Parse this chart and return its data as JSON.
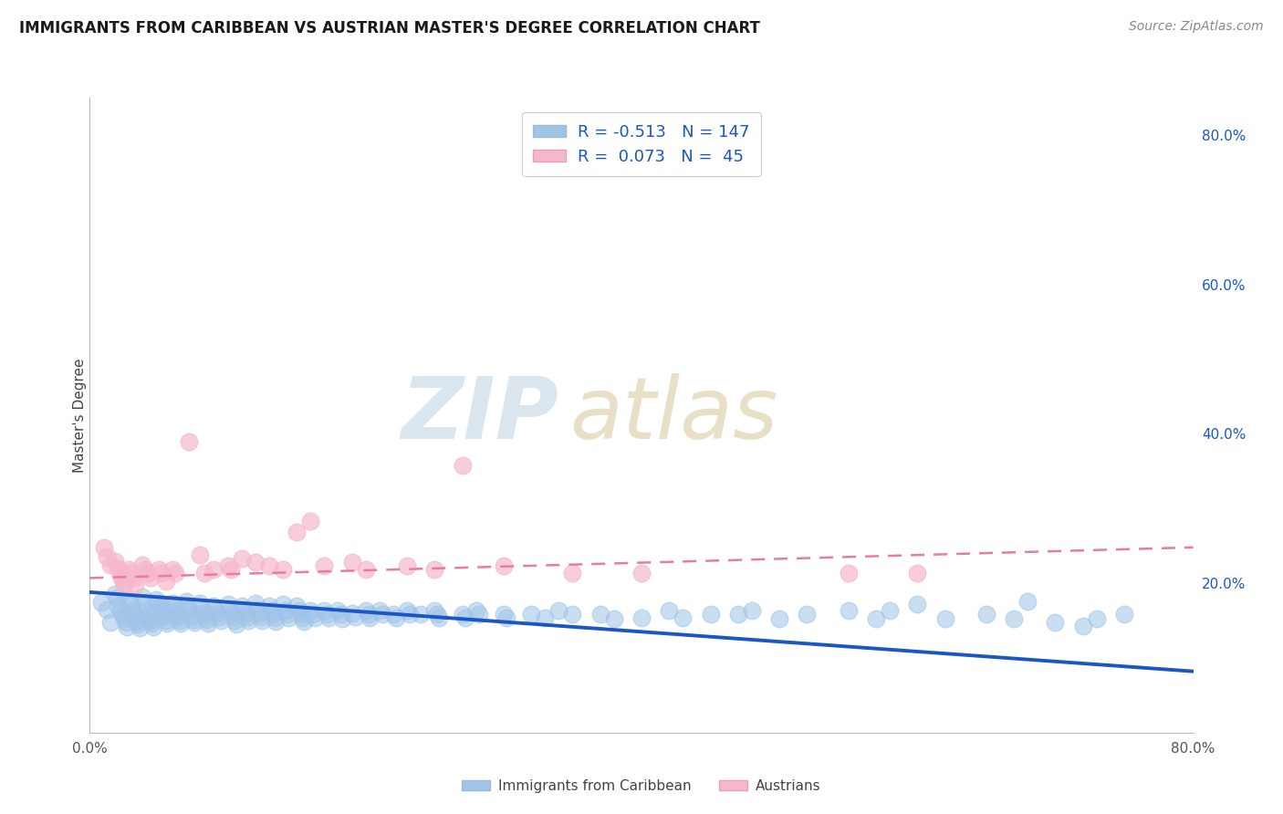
{
  "title": "IMMIGRANTS FROM CARIBBEAN VS AUSTRIAN MASTER'S DEGREE CORRELATION CHART",
  "source": "Source: ZipAtlas.com",
  "ylabel": "Master's Degree",
  "legend_label_blue": "Immigrants from Caribbean",
  "legend_label_pink": "Austrians",
  "legend_r_blue": "-0.513",
  "legend_n_blue": "147",
  "legend_r_pink": "0.073",
  "legend_n_pink": "45",
  "title_fontsize": 12,
  "source_fontsize": 10,
  "background_color": "#ffffff",
  "plot_bg_color": "#ffffff",
  "grid_color": "#cccccc",
  "blue_scatter_color": "#a0c4e8",
  "pink_scatter_color": "#f5b8cb",
  "blue_line_color": "#1a56c4",
  "pink_line_color": "#e87ca0",
  "watermark_zip_color": "#c8d8e8",
  "watermark_atlas_color": "#d4c8a0",
  "blue_scatter": [
    [
      0.008,
      0.175
    ],
    [
      0.012,
      0.165
    ],
    [
      0.015,
      0.148
    ],
    [
      0.018,
      0.185
    ],
    [
      0.02,
      0.18
    ],
    [
      0.02,
      0.17
    ],
    [
      0.022,
      0.162
    ],
    [
      0.024,
      0.157
    ],
    [
      0.025,
      0.152
    ],
    [
      0.026,
      0.147
    ],
    [
      0.027,
      0.142
    ],
    [
      0.028,
      0.178
    ],
    [
      0.03,
      0.172
    ],
    [
      0.031,
      0.163
    ],
    [
      0.032,
      0.158
    ],
    [
      0.033,
      0.153
    ],
    [
      0.034,
      0.149
    ],
    [
      0.035,
      0.145
    ],
    [
      0.036,
      0.14
    ],
    [
      0.038,
      0.182
    ],
    [
      0.04,
      0.173
    ],
    [
      0.041,
      0.163
    ],
    [
      0.042,
      0.158
    ],
    [
      0.043,
      0.154
    ],
    [
      0.044,
      0.15
    ],
    [
      0.045,
      0.146
    ],
    [
      0.046,
      0.141
    ],
    [
      0.048,
      0.178
    ],
    [
      0.05,
      0.173
    ],
    [
      0.051,
      0.169
    ],
    [
      0.052,
      0.163
    ],
    [
      0.053,
      0.159
    ],
    [
      0.054,
      0.155
    ],
    [
      0.055,
      0.15
    ],
    [
      0.056,
      0.146
    ],
    [
      0.06,
      0.173
    ],
    [
      0.061,
      0.169
    ],
    [
      0.062,
      0.164
    ],
    [
      0.063,
      0.159
    ],
    [
      0.064,
      0.155
    ],
    [
      0.065,
      0.15
    ],
    [
      0.066,
      0.146
    ],
    [
      0.07,
      0.176
    ],
    [
      0.071,
      0.17
    ],
    [
      0.072,
      0.165
    ],
    [
      0.074,
      0.156
    ],
    [
      0.075,
      0.151
    ],
    [
      0.076,
      0.147
    ],
    [
      0.08,
      0.173
    ],
    [
      0.082,
      0.165
    ],
    [
      0.083,
      0.16
    ],
    [
      0.084,
      0.155
    ],
    [
      0.085,
      0.151
    ],
    [
      0.086,
      0.146
    ],
    [
      0.09,
      0.17
    ],
    [
      0.091,
      0.164
    ],
    [
      0.093,
      0.16
    ],
    [
      0.094,
      0.155
    ],
    [
      0.095,
      0.15
    ],
    [
      0.1,
      0.172
    ],
    [
      0.102,
      0.165
    ],
    [
      0.103,
      0.16
    ],
    [
      0.104,
      0.155
    ],
    [
      0.105,
      0.15
    ],
    [
      0.106,
      0.145
    ],
    [
      0.11,
      0.169
    ],
    [
      0.112,
      0.164
    ],
    [
      0.113,
      0.159
    ],
    [
      0.114,
      0.155
    ],
    [
      0.115,
      0.15
    ],
    [
      0.12,
      0.173
    ],
    [
      0.122,
      0.165
    ],
    [
      0.123,
      0.16
    ],
    [
      0.124,
      0.155
    ],
    [
      0.125,
      0.15
    ],
    [
      0.13,
      0.169
    ],
    [
      0.132,
      0.164
    ],
    [
      0.133,
      0.159
    ],
    [
      0.134,
      0.154
    ],
    [
      0.135,
      0.149
    ],
    [
      0.14,
      0.172
    ],
    [
      0.142,
      0.164
    ],
    [
      0.143,
      0.159
    ],
    [
      0.144,
      0.154
    ],
    [
      0.15,
      0.169
    ],
    [
      0.152,
      0.164
    ],
    [
      0.153,
      0.159
    ],
    [
      0.154,
      0.154
    ],
    [
      0.155,
      0.149
    ],
    [
      0.16,
      0.164
    ],
    [
      0.162,
      0.159
    ],
    [
      0.163,
      0.154
    ],
    [
      0.17,
      0.164
    ],
    [
      0.172,
      0.159
    ],
    [
      0.173,
      0.154
    ],
    [
      0.18,
      0.163
    ],
    [
      0.182,
      0.158
    ],
    [
      0.183,
      0.153
    ],
    [
      0.19,
      0.16
    ],
    [
      0.192,
      0.155
    ],
    [
      0.2,
      0.164
    ],
    [
      0.202,
      0.159
    ],
    [
      0.203,
      0.154
    ],
    [
      0.21,
      0.163
    ],
    [
      0.212,
      0.158
    ],
    [
      0.22,
      0.159
    ],
    [
      0.222,
      0.154
    ],
    [
      0.23,
      0.164
    ],
    [
      0.232,
      0.159
    ],
    [
      0.24,
      0.159
    ],
    [
      0.25,
      0.164
    ],
    [
      0.252,
      0.159
    ],
    [
      0.253,
      0.154
    ],
    [
      0.27,
      0.159
    ],
    [
      0.272,
      0.154
    ],
    [
      0.28,
      0.164
    ],
    [
      0.282,
      0.159
    ],
    [
      0.3,
      0.159
    ],
    [
      0.302,
      0.154
    ],
    [
      0.32,
      0.159
    ],
    [
      0.33,
      0.154
    ],
    [
      0.34,
      0.164
    ],
    [
      0.35,
      0.159
    ],
    [
      0.37,
      0.158
    ],
    [
      0.38,
      0.153
    ],
    [
      0.4,
      0.154
    ],
    [
      0.42,
      0.163
    ],
    [
      0.43,
      0.154
    ],
    [
      0.45,
      0.159
    ],
    [
      0.47,
      0.158
    ],
    [
      0.48,
      0.163
    ],
    [
      0.5,
      0.153
    ],
    [
      0.52,
      0.158
    ],
    [
      0.55,
      0.163
    ],
    [
      0.57,
      0.153
    ],
    [
      0.58,
      0.163
    ],
    [
      0.6,
      0.172
    ],
    [
      0.62,
      0.153
    ],
    [
      0.65,
      0.158
    ],
    [
      0.67,
      0.153
    ],
    [
      0.68,
      0.176
    ],
    [
      0.7,
      0.148
    ],
    [
      0.72,
      0.143
    ],
    [
      0.73,
      0.153
    ],
    [
      0.75,
      0.158
    ]
  ],
  "pink_scatter": [
    [
      0.01,
      0.248
    ],
    [
      0.012,
      0.235
    ],
    [
      0.015,
      0.225
    ],
    [
      0.018,
      0.23
    ],
    [
      0.02,
      0.22
    ],
    [
      0.022,
      0.214
    ],
    [
      0.023,
      0.208
    ],
    [
      0.024,
      0.203
    ],
    [
      0.025,
      0.198
    ],
    [
      0.028,
      0.218
    ],
    [
      0.03,
      0.213
    ],
    [
      0.032,
      0.208
    ],
    [
      0.033,
      0.198
    ],
    [
      0.038,
      0.224
    ],
    [
      0.04,
      0.218
    ],
    [
      0.042,
      0.213
    ],
    [
      0.044,
      0.208
    ],
    [
      0.05,
      0.218
    ],
    [
      0.052,
      0.213
    ],
    [
      0.055,
      0.203
    ],
    [
      0.06,
      0.218
    ],
    [
      0.062,
      0.213
    ],
    [
      0.072,
      0.39
    ],
    [
      0.08,
      0.238
    ],
    [
      0.083,
      0.213
    ],
    [
      0.09,
      0.218
    ],
    [
      0.1,
      0.223
    ],
    [
      0.102,
      0.218
    ],
    [
      0.11,
      0.233
    ],
    [
      0.12,
      0.228
    ],
    [
      0.13,
      0.223
    ],
    [
      0.14,
      0.218
    ],
    [
      0.15,
      0.268
    ],
    [
      0.16,
      0.283
    ],
    [
      0.17,
      0.223
    ],
    [
      0.19,
      0.228
    ],
    [
      0.2,
      0.218
    ],
    [
      0.23,
      0.223
    ],
    [
      0.25,
      0.218
    ],
    [
      0.27,
      0.358
    ],
    [
      0.3,
      0.223
    ],
    [
      0.35,
      0.213
    ],
    [
      0.4,
      0.213
    ],
    [
      0.55,
      0.213
    ],
    [
      0.6,
      0.213
    ]
  ],
  "blue_line": {
    "x": [
      0.0,
      0.8
    ],
    "y": [
      0.188,
      0.082
    ]
  },
  "pink_line": {
    "x": [
      0.0,
      0.8
    ],
    "y": [
      0.207,
      0.248
    ]
  },
  "xlim": [
    0.0,
    0.8
  ],
  "ylim": [
    0.0,
    0.85
  ],
  "right_ytick_vals": [
    0.2,
    0.4,
    0.6,
    0.8
  ],
  "right_ytick_labels": [
    "20.0%",
    "40.0%",
    "60.0%",
    "80.0%"
  ],
  "xtick_vals": [
    0.0,
    0.8
  ],
  "xtick_labels": [
    "0.0%",
    "80.0%"
  ]
}
